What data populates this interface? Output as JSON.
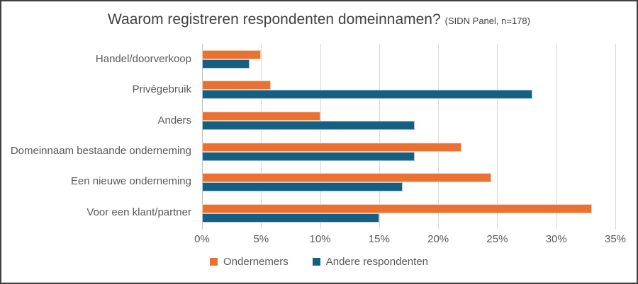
{
  "title": {
    "main": "Waarom registreren respondenten domeinnamen?",
    "note": "(SIDN Panel, n=178)"
  },
  "chart_data": {
    "type": "bar",
    "orientation": "horizontal",
    "title": "Waarom registreren respondenten domeinnamen? (SIDN Panel, n=178)",
    "categories": [
      "Handel/doorverkoop",
      "Privégebruik",
      "Anders",
      "Domeinnaam bestaande onderneming",
      "Een nieuwe onderneming",
      "Voor een klant/partner"
    ],
    "series": [
      {
        "name": "Ondernemers",
        "color": "#E97132",
        "border_color": "#F6CDAD",
        "values": [
          5,
          5.8,
          10,
          22,
          24.5,
          33
        ]
      },
      {
        "name": "Andere respondenten",
        "color": "#156082",
        "border_color": "#AEC8D9",
        "values": [
          4,
          28,
          18,
          18,
          17,
          15
        ]
      }
    ],
    "xlim": [
      0,
      35
    ],
    "x_ticks": [
      "0%",
      "5%",
      "10%",
      "15%",
      "20%",
      "25%",
      "30%",
      "35%"
    ],
    "grid": "vertical-only",
    "gridline_color": "#D9D9D9",
    "legend_position": "bottom"
  }
}
